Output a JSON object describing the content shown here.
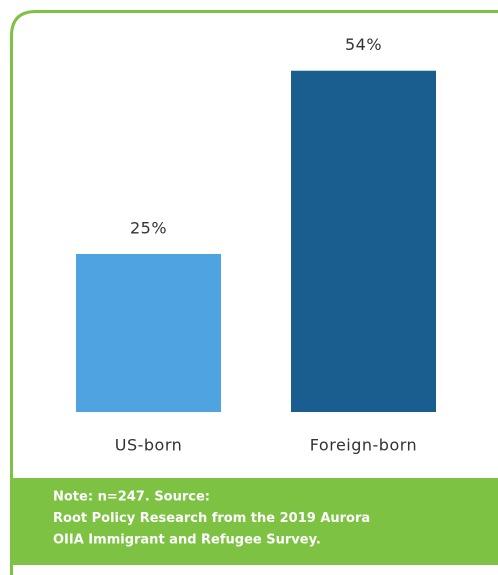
{
  "chart_data": {
    "type": "bar",
    "categories": [
      "US-born",
      "Foreign-born"
    ],
    "values": [
      25,
      54
    ],
    "value_labels": [
      "25%",
      "54%"
    ],
    "colors": [
      "#4fa3e0",
      "#1a5e8f"
    ],
    "note": [
      "Note: n=247. Source:",
      "Root Policy Research from the 2019 Aurora",
      "OIIA Immigrant and Refugee Survey."
    ]
  }
}
